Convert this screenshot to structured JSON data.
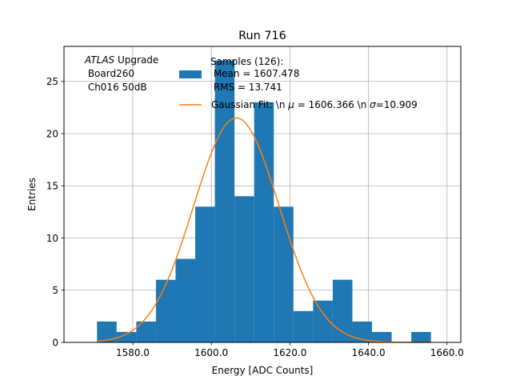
{
  "chart_data": {
    "type": "bar",
    "title": "Run 716",
    "xlabel": "Energy [ADC Counts]",
    "ylabel": "Entries",
    "xlim": [
      1562.5,
      1663.5
    ],
    "ylim": [
      0,
      28.35
    ],
    "grid": true,
    "x_ticks": [
      {
        "value": 1580,
        "label": "1580.0"
      },
      {
        "value": 1600,
        "label": "1600.0"
      },
      {
        "value": 1620,
        "label": "1620.0"
      },
      {
        "value": 1640,
        "label": "1640.0"
      },
      {
        "value": 1660,
        "label": "1660.0"
      }
    ],
    "y_ticks": [
      {
        "value": 0,
        "label": "0"
      },
      {
        "value": 5,
        "label": "5"
      },
      {
        "value": 10,
        "label": "10"
      },
      {
        "value": 15,
        "label": "15"
      },
      {
        "value": 20,
        "label": "20"
      },
      {
        "value": 25,
        "label": "25"
      }
    ],
    "histogram": {
      "bin_edges": [
        1570.9,
        1575.9,
        1580.9,
        1585.9,
        1590.9,
        1595.9,
        1600.9,
        1605.9,
        1610.9,
        1615.9,
        1620.9,
        1625.9,
        1630.9,
        1635.9,
        1640.9,
        1645.9,
        1650.9,
        1655.9
      ],
      "counts": [
        2,
        1,
        2,
        6,
        8,
        13,
        27,
        14,
        23,
        13,
        3,
        4,
        6,
        2,
        1,
        0,
        1
      ],
      "color": "#1f77b4"
    },
    "fit": {
      "mu": 1606.366,
      "sigma": 10.909,
      "amplitude": 21.5,
      "range": [
        1571,
        1656
      ],
      "color": "#ff7f0e"
    },
    "annotation": {
      "atlas": "ATLAS",
      "upgrade": " Upgrade",
      "line2": " Board260",
      "line3": " Ch016 50dB"
    },
    "legend": {
      "placement": "top-center",
      "histogram_lines": [
        "Samples (126):",
        " Mean = 1607.478",
        " RMS = 13.741"
      ],
      "fit_label_prefix": "Gaussian Fit: \\n ",
      "mu_symbol": "μ",
      "mu_text": " = 1606.366 \\n ",
      "sigma_symbol": "σ",
      "sigma_text": "=10.909"
    }
  }
}
